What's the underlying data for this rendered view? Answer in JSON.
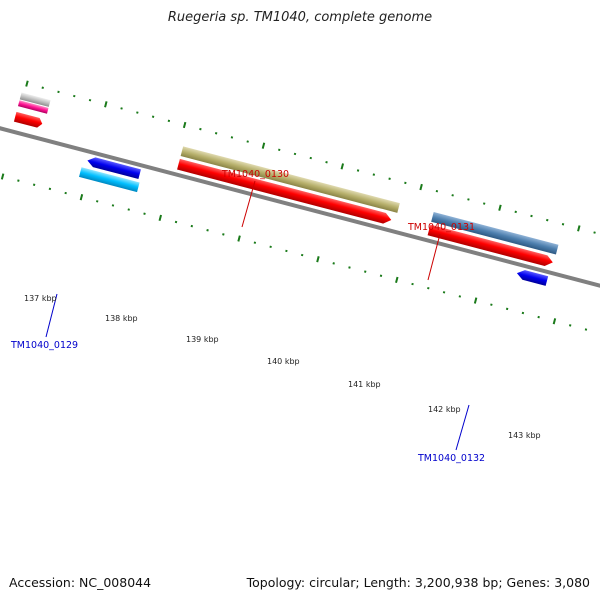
{
  "title": "Ruegeria sp. TM1040, complete genome",
  "footer": {
    "accession": "Accession: NC_008044",
    "summary": "Topology: circular; Length: 3,200,938 bp; Genes: 3,080"
  },
  "ticks": [
    "137 kbp",
    "138 kbp",
    "139 kbp",
    "140 kbp",
    "141 kbp",
    "142 kbp",
    "143 kbp"
  ],
  "genes": {
    "g0129": {
      "label": "TM1040_0129",
      "color": "#0000cc"
    },
    "g0130": {
      "label": "TM1040_0130",
      "color": "#cc0000"
    },
    "g0131": {
      "label": "TM1040_0131",
      "color": "#cc0000"
    },
    "g0132": {
      "label": "TM1040_0132",
      "color": "#0000cc"
    }
  },
  "colors": {
    "backbone": "#808080",
    "tick": "#1a7a1a",
    "cds": "#ff0000",
    "gene_olive": "#b7b06c",
    "gene_steel": "#4d7fae",
    "gene_blue": "#0000ee",
    "gene_cyan": "#00bfff",
    "gene_gray": "#c0c0c0",
    "gene_magenta": "#ff1493"
  }
}
